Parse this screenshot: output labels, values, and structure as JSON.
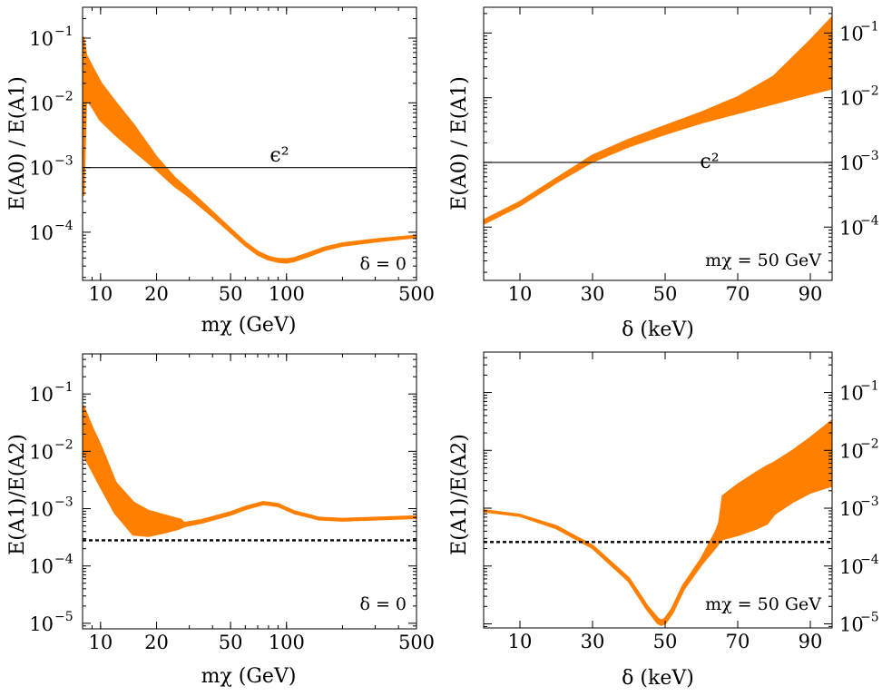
{
  "colors": {
    "band": "#ff8000",
    "reference": "#000000"
  },
  "chart_data": [
    {
      "id": "p1",
      "type": "area",
      "x_scale": "log",
      "y_scale": "log",
      "xlim": [
        8,
        500
      ],
      "ylim": [
        1.8e-05,
        0.3
      ],
      "xticks": [
        10,
        20,
        50,
        100,
        500
      ],
      "ytick_exponents": [
        -1,
        -2,
        -3,
        -4
      ],
      "yaxis_side": "left",
      "ylabel": "E(A0) / E(A1)",
      "xlabel": "mχ (GeV)",
      "annotation": "δ = 0",
      "reference_line": {
        "value": 0.001,
        "style": "solid",
        "label": "ϵ²"
      },
      "series": [
        {
          "name": "band",
          "x": [
            8.05,
            8.3,
            9,
            10,
            12,
            15,
            20,
            25,
            30,
            40,
            50,
            60,
            70,
            80,
            90,
            100,
            110,
            130,
            160,
            200,
            300,
            400,
            500
          ],
          "upper": [
            0.1,
            0.055,
            0.035,
            0.02,
            0.01,
            0.0045,
            0.0014,
            0.00068,
            0.00043,
            0.0002,
            0.00011,
            6.8e-05,
            4.9e-05,
            4.1e-05,
            3.8e-05,
            3.75e-05,
            3.9e-05,
            4.6e-05,
            5.7e-05,
            6.6e-05,
            7.6e-05,
            8.2e-05,
            8.7e-05
          ],
          "lower": [
            0.00038,
            0.012,
            0.009,
            0.0055,
            0.0033,
            0.0019,
            0.00095,
            0.00053,
            0.00036,
            0.00018,
            0.000102,
            6.4e-05,
            4.6e-05,
            3.85e-05,
            3.55e-05,
            3.45e-05,
            3.65e-05,
            4.3e-05,
            5.4e-05,
            6.3e-05,
            7.3e-05,
            8e-05,
            8.5e-05
          ]
        }
      ]
    },
    {
      "id": "p2",
      "type": "area",
      "x_scale": "linear",
      "y_scale": "log",
      "xlim": [
        0,
        96
      ],
      "ylim": [
        1.5e-05,
        0.25
      ],
      "xticks": [
        10,
        30,
        50,
        70,
        90
      ],
      "ytick_exponents": [
        -1,
        -2,
        -3,
        -4
      ],
      "yaxis_side": "right",
      "ylabel": "E(A0) / E(A1)",
      "xlabel": "δ (keV)",
      "annotation": "mχ = 50 GeV",
      "reference_line": {
        "value": 0.001,
        "style": "solid",
        "label": "ϵ²"
      },
      "series": [
        {
          "name": "band",
          "x": [
            0,
            10,
            20,
            30,
            40,
            50,
            60,
            70,
            80,
            90,
            96
          ],
          "upper": [
            0.000125,
            0.00024,
            0.00055,
            0.00125,
            0.0022,
            0.0036,
            0.0058,
            0.01,
            0.021,
            0.075,
            0.17
          ],
          "lower": [
            0.000115,
            0.00022,
            0.0005,
            0.00105,
            0.0018,
            0.0028,
            0.0042,
            0.0059,
            0.0083,
            0.0117,
            0.0142
          ]
        }
      ]
    },
    {
      "id": "p3",
      "type": "area",
      "x_scale": "log",
      "y_scale": "log",
      "xlim": [
        8,
        500
      ],
      "ylim": [
        8e-06,
        0.5
      ],
      "xticks": [
        10,
        20,
        50,
        100,
        500
      ],
      "ytick_exponents": [
        -1,
        -2,
        -3,
        -4,
        -5
      ],
      "yaxis_side": "left",
      "ylabel": "E(A1)/E(A2)",
      "xlabel": "mχ (GeV)",
      "annotation": "δ = 0",
      "reference_line": {
        "value": 0.00028,
        "style": "dashed"
      },
      "series": [
        {
          "name": "band",
          "x": [
            8.05,
            9,
            10,
            12,
            15,
            18,
            22,
            26,
            27,
            28,
            35,
            50,
            60,
            75,
            90,
            110,
            150,
            200,
            300,
            500
          ],
          "upper": [
            0.06,
            0.025,
            0.012,
            0.0028,
            0.00125,
            0.0009,
            0.00075,
            0.00065,
            0.00063,
            0.00055,
            0.00062,
            0.00085,
            0.00105,
            0.00128,
            0.00118,
            0.00088,
            0.00068,
            0.00065,
            0.00068,
            0.00072
          ],
          "lower": [
            0.0092,
            0.0048,
            0.0025,
            0.00085,
            0.00036,
            0.00034,
            0.00039,
            0.00045,
            0.00047,
            0.0005,
            0.00058,
            0.0008,
            0.001,
            0.00122,
            0.00113,
            0.00085,
            0.00066,
            0.00063,
            0.00066,
            0.0007
          ]
        }
      ]
    },
    {
      "id": "p4",
      "type": "area",
      "x_scale": "linear",
      "y_scale": "log",
      "xlim": [
        0,
        96
      ],
      "ylim": [
        8.5e-06,
        0.5
      ],
      "xticks": [
        10,
        30,
        50,
        70,
        90
      ],
      "ytick_exponents": [
        -1,
        -2,
        -3,
        -4,
        -5
      ],
      "yaxis_side": "right",
      "ylabel": "E(A1)/E(A2)",
      "xlabel": "δ (keV)",
      "annotation": "mχ = 50 GeV",
      "reference_line": {
        "value": 0.00026,
        "style": "dashed"
      },
      "series": [
        {
          "name": "band",
          "x": [
            0,
            10,
            20,
            30,
            40,
            45,
            48,
            49,
            50,
            52,
            55,
            60,
            64,
            65,
            65.5,
            66,
            70,
            75,
            78,
            80,
            85,
            90,
            96
          ],
          "upper": [
            0.0009,
            0.00075,
            0.00048,
            0.00022,
            6e-05,
            2e-05,
            1.2e-05,
            1.12e-05,
            1.2e-05,
            1.8e-05,
            4.5e-05,
            0.00013,
            0.00038,
            0.00055,
            0.00093,
            0.0016,
            0.0025,
            0.004,
            0.0052,
            0.006,
            0.0095,
            0.016,
            0.032
          ],
          "lower": [
            0.0009,
            0.00075,
            0.00046,
            0.00021,
            5.6e-05,
            1.85e-05,
            1.05e-05,
            9.8e-06,
            1.05e-05,
            1.6e-05,
            4e-05,
            0.00011,
            0.00022,
            0.00027,
            0.00029,
            0.0003,
            0.00035,
            0.00045,
            0.00055,
            0.0008,
            0.0013,
            0.0019,
            0.0025
          ]
        }
      ]
    }
  ]
}
